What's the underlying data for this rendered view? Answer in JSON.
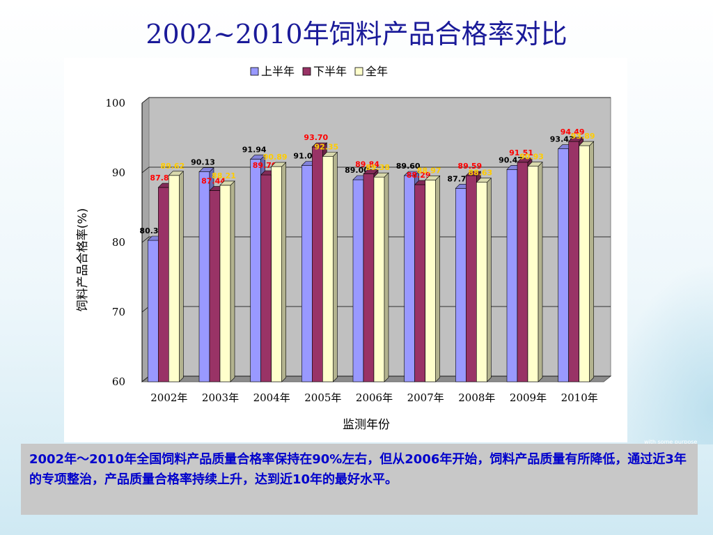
{
  "slide": {
    "title": "2002~2010年饲料产品合格率对比",
    "note": "2002年～2010年全国饲料产品质量合格率保持在90%左右，但从2006年开始，饲料产品质量有所降低，通过近3年的专项整治，产品质量合格率持续上升，达到近10年的最好水平。",
    "footer_fragment": "with some purpose"
  },
  "colors": {
    "series": [
      "#9999ff",
      "#993366",
      "#ffffcc"
    ],
    "label_colors": [
      "#000000",
      "#ff0000",
      "#ffcc00"
    ],
    "title": "#1a1a99",
    "note_text": "#0000cc"
  },
  "chart_data": {
    "type": "bar",
    "title": "",
    "categories": [
      "2002年",
      "2003年",
      "2004年",
      "2005年",
      "2006年",
      "2007年",
      "2008年",
      "2009年",
      "2010年"
    ],
    "series": [
      {
        "name": "上半年",
        "values": [
          80.3,
          90.13,
          91.94,
          91.05,
          89.0,
          89.6,
          87.77,
          90.47,
          93.43
        ]
      },
      {
        "name": "下半年",
        "values": [
          87.89,
          87.44,
          89.7,
          93.7,
          89.84,
          88.29,
          89.59,
          91.51,
          94.49
        ]
      },
      {
        "name": "全年",
        "values": [
          89.62,
          88.21,
          90.89,
          92.35,
          89.38,
          88.97,
          88.63,
          90.93,
          93.89
        ]
      }
    ],
    "xlabel": "监测年份",
    "ylabel": "饲料产品合格率(%)",
    "ylim": [
      60,
      100
    ],
    "yticks": [
      "60",
      "70",
      "80",
      "90",
      "100"
    ],
    "grid": true,
    "legend_position": "top",
    "style": "3d-clustered-bar"
  }
}
